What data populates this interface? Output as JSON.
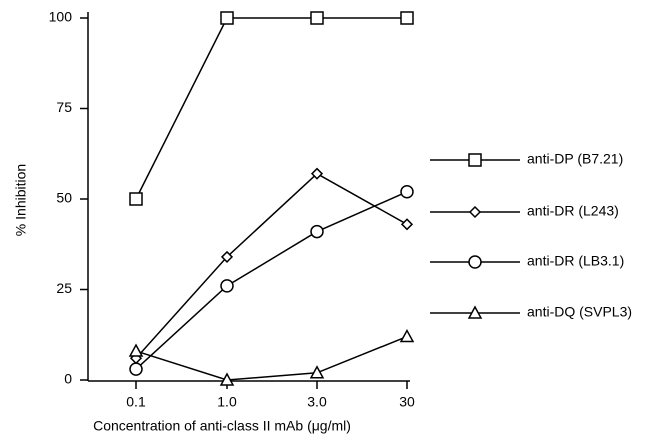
{
  "chart_data": {
    "type": "line",
    "x_label": "Concentration of anti-class II mAb (μg/ml)",
    "y_label": "% Inhibition",
    "categories": [
      "0.1",
      "1.0",
      "3.0",
      "30"
    ],
    "ylim": [
      0,
      100
    ],
    "yticks": [
      0,
      25,
      50,
      75,
      100
    ],
    "series": [
      {
        "name": "anti-DP (B7.21)",
        "color": "#000000",
        "marker": "square",
        "values": [
          50,
          100,
          100,
          100
        ]
      },
      {
        "name": "anti-DR (L243)",
        "color": "#000000",
        "marker": "diamond",
        "values": [
          6,
          34,
          57,
          43
        ]
      },
      {
        "name": "anti-DR (LB3.1)",
        "color": "#000000",
        "marker": "circle",
        "values": [
          3,
          26,
          41,
          52
        ]
      },
      {
        "name": "anti-DQ (SVPL3)",
        "color": "#000000",
        "marker": "triangle",
        "values": [
          8,
          0,
          2,
          12
        ]
      }
    ]
  }
}
